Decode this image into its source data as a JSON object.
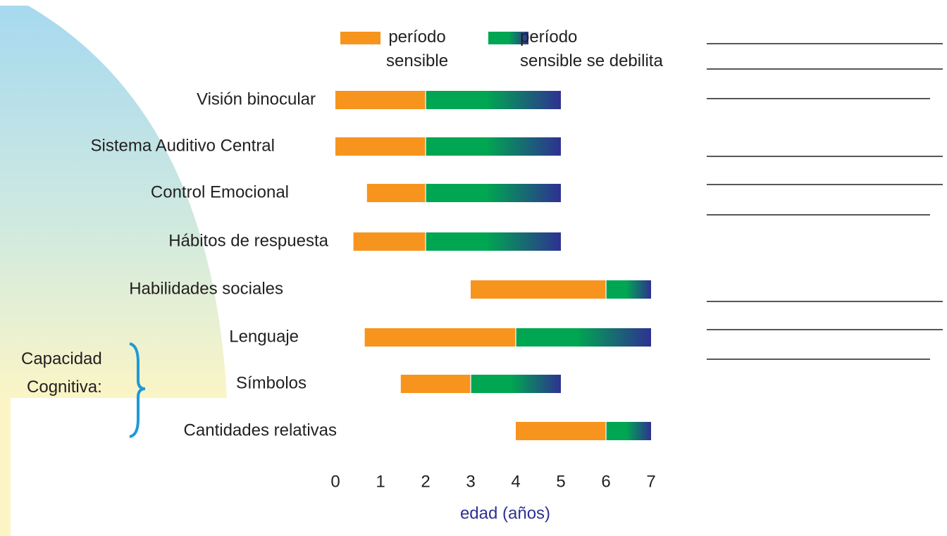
{
  "chart_data": {
    "type": "range_bar",
    "categories": [
      "Visión binocular",
      "Sistema Auditivo Central",
      "Control Emocional",
      "Hábitos de respuesta",
      "Habilidades sociales",
      "Lenguaje",
      "Símbolos",
      "Cantidades relativas"
    ],
    "series": [
      {
        "name": "período\nsensible",
        "color": "#f7941d",
        "start": [
          0,
          0,
          0.7,
          0.4,
          3,
          0.65,
          1.45,
          4
        ],
        "end": [
          2,
          2,
          2,
          2,
          6,
          4,
          3,
          6
        ]
      },
      {
        "name": "período\nsensible se debilita",
        "color": "#00a651",
        "color_end": "#2e3192",
        "start": [
          2,
          2,
          2,
          2,
          6,
          4,
          3,
          6
        ],
        "end": [
          5,
          5,
          5,
          5,
          7,
          7,
          5,
          7
        ]
      }
    ],
    "xlim": [
      0,
      7
    ],
    "xticks": [
      0,
      1,
      2,
      3,
      4,
      5,
      6,
      7
    ],
    "xlabel": "edad (años)",
    "group_label": "Capacidad\nCognitiva:"
  }
}
